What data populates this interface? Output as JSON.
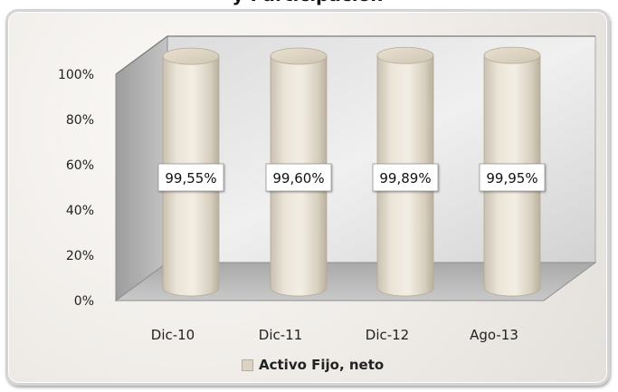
{
  "chart_data": {
    "type": "bar",
    "title": "",
    "categories": [
      "Dic-10",
      "Dic-11",
      "Dic-12",
      "Ago-13"
    ],
    "series": [
      {
        "name": "Activo Fijo, neto",
        "values": [
          99.55,
          99.6,
          99.89,
          99.95
        ]
      }
    ],
    "value_labels": [
      "99,55%",
      "99,60%",
      "99,89%",
      "99,95%"
    ],
    "y_ticks": [
      "0%",
      "20%",
      "40%",
      "60%",
      "80%",
      "100%"
    ],
    "ylim": [
      0,
      100
    ],
    "xlabel": "",
    "ylabel": "",
    "legend_position": "bottom",
    "style": "3d-cylinder",
    "colors": {
      "bar": "#e3dccd",
      "label_box": "#ffffff",
      "wall": "#cfcfcf"
    }
  },
  "legend": {
    "label": "Activo Fijo, neto"
  }
}
